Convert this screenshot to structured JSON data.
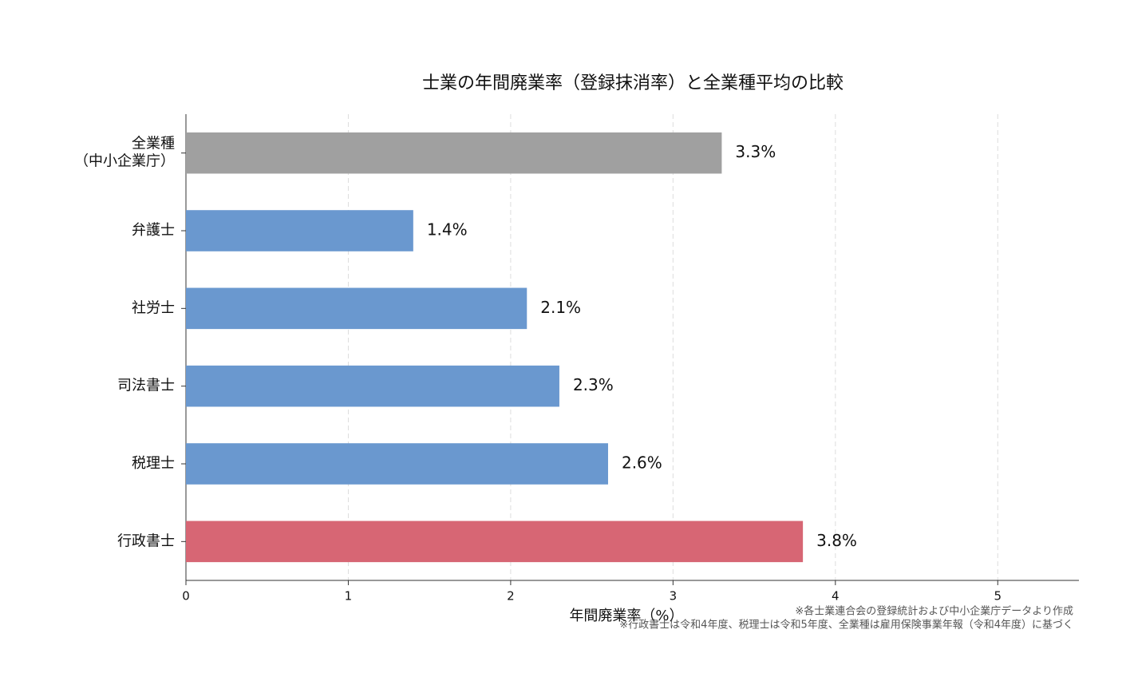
{
  "chart_data": {
    "type": "barh",
    "title": "士業の年間廃業率（登録抹消率）と全業種平均の比較",
    "x_label": "年間廃業率（%）",
    "categories": [
      "全業種\n（中小企業庁）",
      "弁護士",
      "社労士",
      "司法書士",
      "税理士",
      "行政書士"
    ],
    "values": [
      3.3,
      1.4,
      2.1,
      2.3,
      2.6,
      3.8
    ],
    "value_labels": [
      "3.3%",
      "1.4%",
      "2.1%",
      "2.3%",
      "2.6%",
      "3.8%"
    ],
    "colors": [
      "#a0a0a0",
      "#6a98cf",
      "#6a98cf",
      "#6a98cf",
      "#6a98cf",
      "#d76674"
    ],
    "xlim": [
      0,
      5.5
    ],
    "xticks": [
      0,
      1,
      2,
      3,
      4,
      5
    ],
    "grid": true,
    "notes": [
      "※各士業連合会の登録統計および中小企業庁データより作成",
      "※行政書士は令和4年度、税理士は令和5年度、全業種は雇用保険事業年報（令和4年度）に基づく"
    ]
  }
}
